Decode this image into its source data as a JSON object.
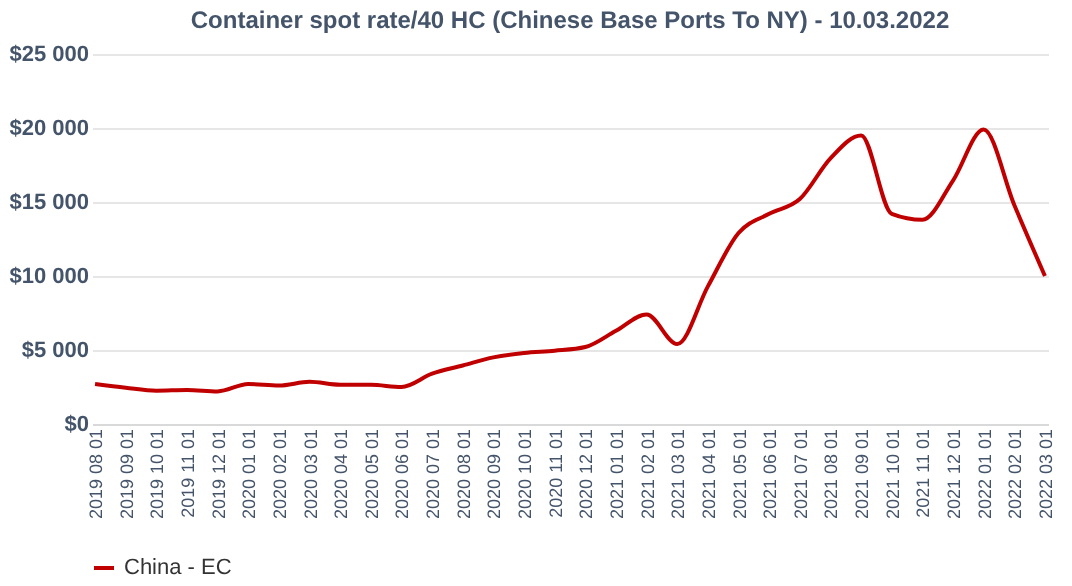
{
  "chart_data": {
    "type": "line",
    "title": "Container spot rate/40 HC (Chinese Base Ports To NY) - 10.03.2022",
    "categories": [
      "2019 08 01",
      "2019 09 01",
      "2019 10 01",
      "2019 11 01",
      "2019 12 01",
      "2020 01 01",
      "2020 02 01",
      "2020 03 01",
      "2020 04 01",
      "2020 05 01",
      "2020 06 01",
      "2020 07 01",
      "2020 08 01",
      "2020 09 01",
      "2020 10 01",
      "2020 11 01",
      "2020 12 01",
      "2021 01 01",
      "2021 02 01",
      "2021 03 01",
      "2021 04 01",
      "2021 05 01",
      "2021 06 01",
      "2021 07 01",
      "2021 08 01",
      "2021 09 01",
      "2021 10 01",
      "2021 11 01",
      "2021 12 01",
      "2022 01 01",
      "2022 02 01",
      "2022 03 01"
    ],
    "series": [
      {
        "name": "China - EC",
        "color": "#c00000",
        "values": [
          2700,
          2450,
          2250,
          2300,
          2200,
          2700,
          2600,
          2850,
          2650,
          2650,
          2500,
          3400,
          3950,
          4500,
          4800,
          4950,
          5200,
          6300,
          7400,
          5400,
          9300,
          12900,
          14200,
          15200,
          17950,
          19500,
          14200,
          13800,
          16450,
          19900,
          14800,
          10000
        ]
      }
    ],
    "ylim": [
      0,
      25000
    ],
    "yticks": [
      {
        "value": 0,
        "label": "$0"
      },
      {
        "value": 5000,
        "label": "$5 000"
      },
      {
        "value": 10000,
        "label": "$10 000"
      },
      {
        "value": 15000,
        "label": "$15 000"
      },
      {
        "value": 20000,
        "label": "$20 000"
      },
      {
        "value": 25000,
        "label": "$25 000"
      }
    ],
    "grid": "y",
    "legend": "bottom",
    "marker": "none",
    "line_style": "solid"
  }
}
